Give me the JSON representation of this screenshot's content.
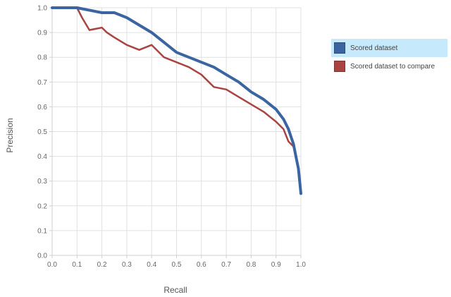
{
  "chart_data": {
    "type": "line",
    "xlabel": "Recall",
    "ylabel": "Precision",
    "xlim": [
      0.0,
      1.0
    ],
    "ylim": [
      0.0,
      1.0
    ],
    "x_ticks": [
      "0.0",
      "0.1",
      "0.2",
      "0.3",
      "0.4",
      "0.5",
      "0.6",
      "0.7",
      "0.8",
      "0.9",
      "1.0"
    ],
    "y_ticks": [
      "0.0",
      "0.1",
      "0.2",
      "0.3",
      "0.4",
      "0.5",
      "0.6",
      "0.7",
      "0.8",
      "0.9",
      "1.0"
    ],
    "grid": true,
    "legend_position": "right",
    "series": [
      {
        "name": "Scored dataset",
        "color": "#3b65a0",
        "points": [
          [
            0.0,
            1.0
          ],
          [
            0.1,
            1.0
          ],
          [
            0.15,
            0.99
          ],
          [
            0.2,
            0.98
          ],
          [
            0.25,
            0.98
          ],
          [
            0.3,
            0.96
          ],
          [
            0.35,
            0.93
          ],
          [
            0.4,
            0.9
          ],
          [
            0.45,
            0.86
          ],
          [
            0.5,
            0.82
          ],
          [
            0.55,
            0.8
          ],
          [
            0.6,
            0.78
          ],
          [
            0.65,
            0.76
          ],
          [
            0.7,
            0.73
          ],
          [
            0.75,
            0.7
          ],
          [
            0.8,
            0.66
          ],
          [
            0.85,
            0.63
          ],
          [
            0.9,
            0.59
          ],
          [
            0.93,
            0.55
          ],
          [
            0.95,
            0.51
          ],
          [
            0.97,
            0.45
          ],
          [
            0.98,
            0.4
          ],
          [
            0.99,
            0.35
          ],
          [
            1.0,
            0.25
          ]
        ]
      },
      {
        "name": "Scored dataset to compare",
        "color": "#a94442",
        "points": [
          [
            0.0,
            1.0
          ],
          [
            0.1,
            1.0
          ],
          [
            0.12,
            0.96
          ],
          [
            0.15,
            0.91
          ],
          [
            0.2,
            0.92
          ],
          [
            0.22,
            0.9
          ],
          [
            0.25,
            0.88
          ],
          [
            0.3,
            0.85
          ],
          [
            0.35,
            0.83
          ],
          [
            0.4,
            0.85
          ],
          [
            0.45,
            0.8
          ],
          [
            0.5,
            0.78
          ],
          [
            0.55,
            0.76
          ],
          [
            0.6,
            0.73
          ],
          [
            0.65,
            0.68
          ],
          [
            0.7,
            0.67
          ],
          [
            0.75,
            0.64
          ],
          [
            0.8,
            0.61
          ],
          [
            0.85,
            0.58
          ],
          [
            0.9,
            0.54
          ],
          [
            0.93,
            0.51
          ],
          [
            0.95,
            0.46
          ],
          [
            0.97,
            0.44
          ],
          [
            0.98,
            0.4
          ],
          [
            0.99,
            0.35
          ],
          [
            1.0,
            0.25
          ]
        ]
      }
    ]
  }
}
